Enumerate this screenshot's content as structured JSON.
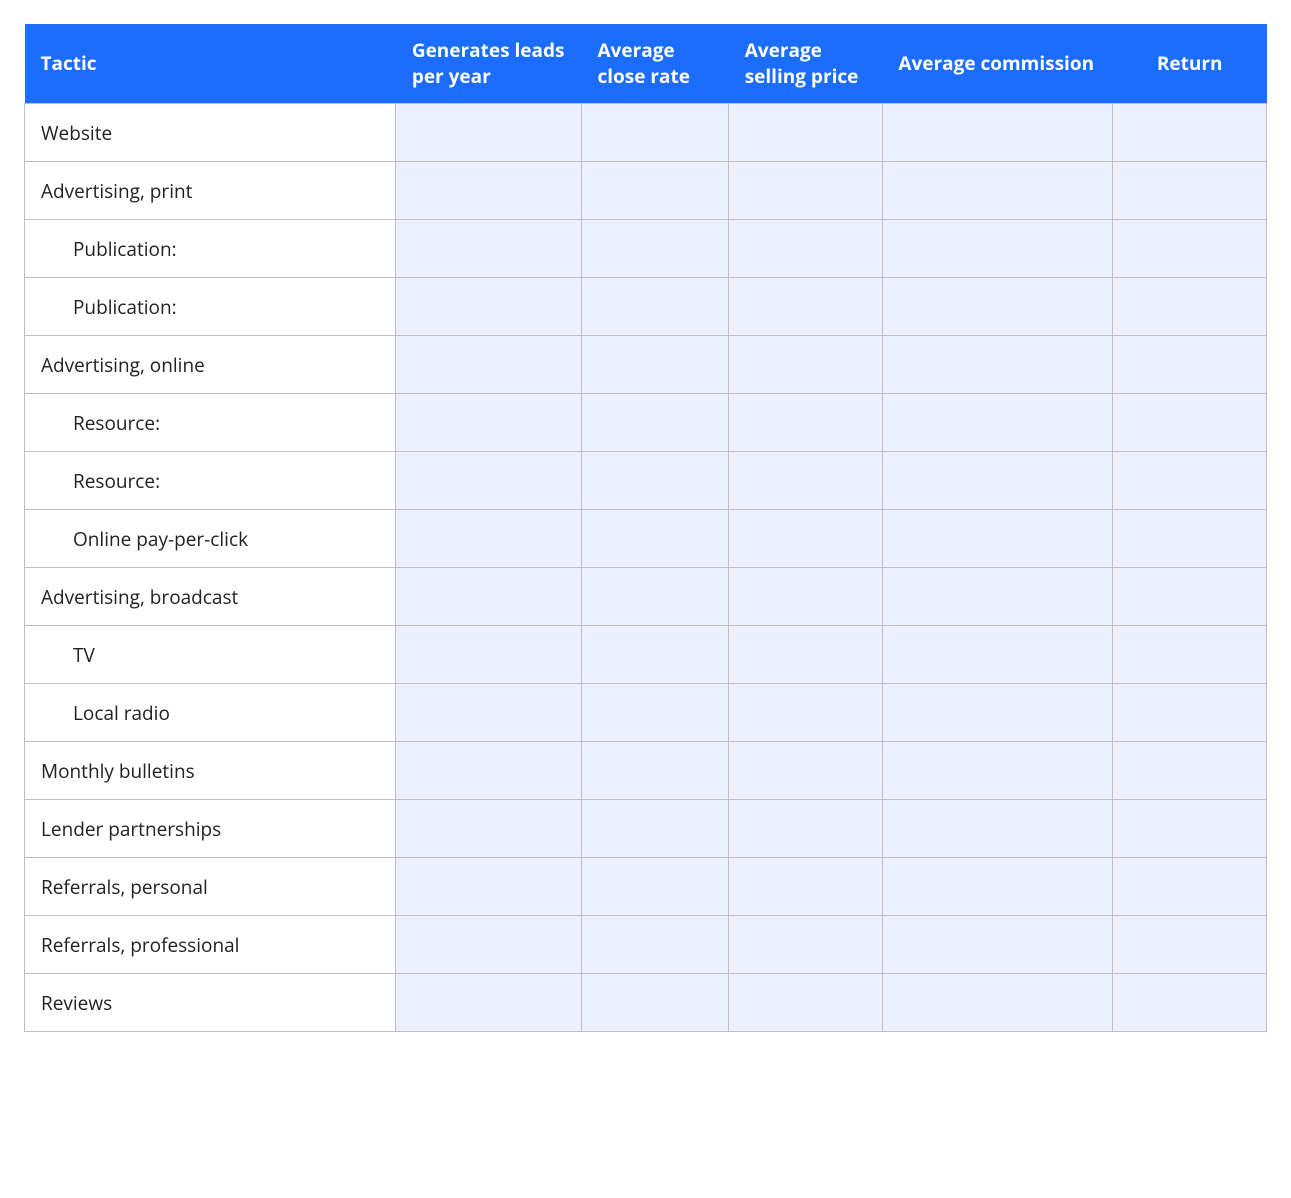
{
  "colors": {
    "header_bg": "#1a6dff",
    "header_fg": "#ffffff",
    "border": "#bfbfbf",
    "empty_cell_bg": "#ecefff",
    "tactic_cell_bg": "#ffffff"
  },
  "typography": {
    "header_fontsize_pt": 14,
    "body_fontsize_pt": 14,
    "header_weight": 700,
    "body_weight": 400,
    "font_family": "Open Sans, Segoe UI, Arial, sans-serif"
  },
  "table": {
    "type": "table",
    "columns": [
      {
        "key": "tactic",
        "label": "Tactic",
        "align": "left"
      },
      {
        "key": "leads",
        "label": "Generates leads per year",
        "align": "left"
      },
      {
        "key": "close_rate",
        "label": "Average close rate",
        "align": "left"
      },
      {
        "key": "selling_price",
        "label": "Average selling price",
        "align": "left"
      },
      {
        "key": "commission",
        "label": "Average commission",
        "align": "left"
      },
      {
        "key": "return",
        "label": "Return",
        "align": "center"
      }
    ],
    "rows": [
      {
        "tactic": "Website",
        "indent": 0,
        "leads": "",
        "close_rate": "",
        "selling_price": "",
        "commission": "",
        "return": ""
      },
      {
        "tactic": "Advertising, print",
        "indent": 0,
        "leads": "",
        "close_rate": "",
        "selling_price": "",
        "commission": "",
        "return": ""
      },
      {
        "tactic": "Publication:",
        "indent": 1,
        "leads": "",
        "close_rate": "",
        "selling_price": "",
        "commission": "",
        "return": ""
      },
      {
        "tactic": "Publication:",
        "indent": 1,
        "leads": "",
        "close_rate": "",
        "selling_price": "",
        "commission": "",
        "return": ""
      },
      {
        "tactic": "Advertising, online",
        "indent": 0,
        "leads": "",
        "close_rate": "",
        "selling_price": "",
        "commission": "",
        "return": ""
      },
      {
        "tactic": "Resource:",
        "indent": 1,
        "leads": "",
        "close_rate": "",
        "selling_price": "",
        "commission": "",
        "return": ""
      },
      {
        "tactic": "Resource:",
        "indent": 1,
        "leads": "",
        "close_rate": "",
        "selling_price": "",
        "commission": "",
        "return": ""
      },
      {
        "tactic": "Online pay-per-click",
        "indent": 1,
        "leads": "",
        "close_rate": "",
        "selling_price": "",
        "commission": "",
        "return": ""
      },
      {
        "tactic": "Advertising, broadcast",
        "indent": 0,
        "leads": "",
        "close_rate": "",
        "selling_price": "",
        "commission": "",
        "return": ""
      },
      {
        "tactic": "TV",
        "indent": 1,
        "leads": "",
        "close_rate": "",
        "selling_price": "",
        "commission": "",
        "return": ""
      },
      {
        "tactic": "Local radio",
        "indent": 1,
        "leads": "",
        "close_rate": "",
        "selling_price": "",
        "commission": "",
        "return": ""
      },
      {
        "tactic": "Monthly bulletins",
        "indent": 0,
        "leads": "",
        "close_rate": "",
        "selling_price": "",
        "commission": "",
        "return": ""
      },
      {
        "tactic": "Lender partnerships",
        "indent": 0,
        "leads": "",
        "close_rate": "",
        "selling_price": "",
        "commission": "",
        "return": ""
      },
      {
        "tactic": "Referrals, personal",
        "indent": 0,
        "leads": "",
        "close_rate": "",
        "selling_price": "",
        "commission": "",
        "return": ""
      },
      {
        "tactic": "Referrals, professional",
        "indent": 0,
        "leads": "",
        "close_rate": "",
        "selling_price": "",
        "commission": "",
        "return": ""
      },
      {
        "tactic": "Reviews",
        "indent": 0,
        "leads": "",
        "close_rate": "",
        "selling_price": "",
        "commission": "",
        "return": ""
      }
    ]
  }
}
